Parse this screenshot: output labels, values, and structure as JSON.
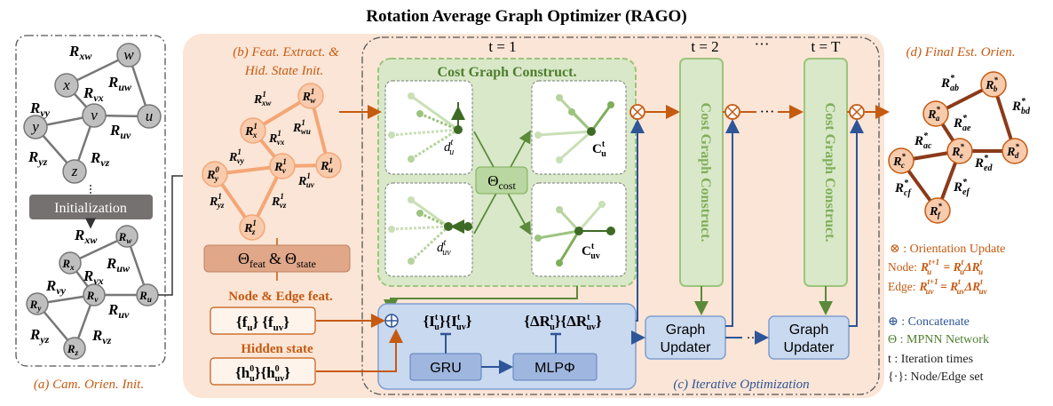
{
  "title": "Rotation Average Graph Optimizer (RAGO)",
  "panels": {
    "a_caption": "(a) Cam. Orien. Init.",
    "b_caption_1": "(b) Feat. Extract. &",
    "b_caption_2": "Hid. State Init.",
    "c_caption": "(c) Iterative Optimization",
    "d_caption": "(d) Final Est. Orien."
  },
  "panel_a": {
    "nodes": [
      "w",
      "x",
      "v",
      "u",
      "y",
      "z"
    ],
    "edges": [
      "R",
      "xw",
      "uw",
      "vx",
      "vy",
      "uv",
      "yz",
      "vz"
    ],
    "init_button": "Initialization",
    "node_R": "R",
    "nodes_sub": [
      "w",
      "x",
      "v",
      "u",
      "y",
      "z"
    ]
  },
  "panel_b": {
    "sup": "1",
    "sup0": "0",
    "theta": "Θ",
    "feat": "feat",
    "and": "&",
    "state": "state",
    "node_edge_feat": "Node & Edge feat.",
    "hidden_state": "Hidden state",
    "f_u": "{f",
    "f_u_sub": "u",
    "f_uv": "{f",
    "f_uv_sub": "uv",
    "h": "{h",
    "h_sub_u": "u",
    "h_sub_uv": "uv",
    "h_sup": "0",
    "close": "}"
  },
  "panel_c": {
    "t1": "t = 1",
    "t2": "t = 2",
    "dots": "···",
    "tT": "t = T",
    "cost_graph_title": "Cost Graph Construct.",
    "theta_cost": "Θ",
    "cost_sub": "cost",
    "d_u": "d",
    "d_uv": "d",
    "C_u": "C",
    "C_uv": "C",
    "sup_t": "t",
    "sub_u": "u",
    "sub_uv": "uv",
    "vertical_label": "Cost Graph Construct.",
    "I_u": "{I",
    "dR": "{ΔR",
    "gru": "GRU",
    "mlp": "MLPΦ",
    "graph_updater_1": "Graph",
    "graph_updater_2": "Updater",
    "mid_dots": "···"
  },
  "panel_d": {
    "nodes": [
      "b",
      "a",
      "e",
      "c",
      "d",
      "f"
    ],
    "edges": [
      "ab",
      "bd",
      "ae",
      "ac",
      "ed",
      "cf",
      "ef"
    ],
    "star": "*"
  },
  "legend": {
    "orientation_update": "⊗ : Orientation Update",
    "node_label": "Node:",
    "edge_label": "Edge:",
    "concatenate": "⊕ : Concatenate",
    "mpnn": "Θ : MPNN Network",
    "iteration": "t : Iteration times",
    "node_edge_set": "{·}: Node/Edge set"
  },
  "colors": {
    "orange": "#c55a11",
    "brown": "#8b3a1a",
    "blue": "#2e5597",
    "green_fill": "#d8e8c8",
    "green_line": "#7fae5a",
    "salmon_bg": "#fbe5d6",
    "node_orange": "#f4b183"
  }
}
